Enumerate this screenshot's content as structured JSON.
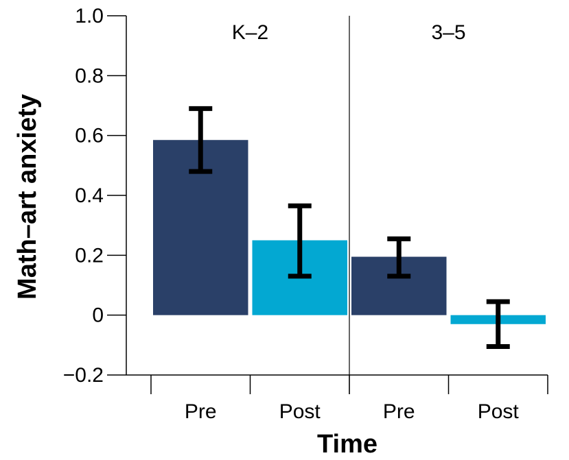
{
  "chart_data": {
    "type": "bar",
    "ylabel": "Math–art anxiety",
    "xlabel": "Time",
    "ylim": [
      -0.2,
      1.0
    ],
    "yticks": [
      {
        "value": -0.2,
        "label": "−0.2"
      },
      {
        "value": 0,
        "label": "0"
      },
      {
        "value": 0.2,
        "label": "0.2"
      },
      {
        "value": 0.4,
        "label": "0.4"
      },
      {
        "value": 0.6,
        "label": "0.6"
      },
      {
        "value": 0.8,
        "label": "0.8"
      },
      {
        "value": 1.0,
        "label": "1.0"
      }
    ],
    "categories": [
      "Pre",
      "Post",
      "Pre",
      "Post"
    ],
    "groups": [
      {
        "name": "K–2",
        "categories": [
          "Pre",
          "Post"
        ]
      },
      {
        "name": "3–5",
        "categories": [
          "Pre",
          "Post"
        ]
      }
    ],
    "bars": [
      {
        "group": "K–2",
        "time": "Pre",
        "value": 0.585,
        "err_low": 0.48,
        "err_high": 0.69
      },
      {
        "group": "K–2",
        "time": "Post",
        "value": 0.25,
        "err_low": 0.13,
        "err_high": 0.365
      },
      {
        "group": "3–5",
        "time": "Pre",
        "value": 0.195,
        "err_low": 0.13,
        "err_high": 0.255
      },
      {
        "group": "3–5",
        "time": "Post",
        "value": -0.03,
        "err_low": -0.105,
        "err_high": 0.045
      }
    ],
    "colors": {
      "Pre": "#2a4068",
      "Post": "#03a8d2"
    },
    "grid": false,
    "error_bars": true
  }
}
